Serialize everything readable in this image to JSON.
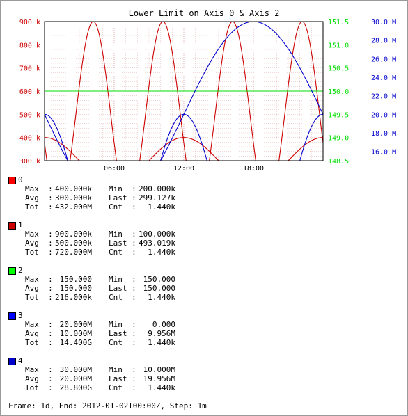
{
  "chart_data": {
    "type": "line",
    "title": "Lower Limit on Axis 0 & Axis 2",
    "x_ticks": [
      "06:00",
      "12:00",
      "18:00"
    ],
    "x_range_hours": [
      0,
      24
    ],
    "axes": [
      {
        "id": "axis0",
        "side": "left",
        "color": "#cc0000",
        "range": [
          300000,
          900000
        ],
        "ticks": [
          {
            "value": 900000,
            "label": "900 k"
          },
          {
            "value": 800000,
            "label": "800 k"
          },
          {
            "value": 700000,
            "label": "700 k"
          },
          {
            "value": 600000,
            "label": "600 k"
          },
          {
            "value": 500000,
            "label": "500 k"
          },
          {
            "value": 400000,
            "label": "400 k"
          },
          {
            "value": 300000,
            "label": "300 k"
          }
        ]
      },
      {
        "id": "axis2",
        "side": "right",
        "color": "#00dd00",
        "range": [
          148.5,
          151.5
        ],
        "ticks": [
          {
            "value": 151.5,
            "label": "151.5"
          },
          {
            "value": 151.0,
            "label": "151.0"
          },
          {
            "value": 150.5,
            "label": "150.5"
          },
          {
            "value": 150.0,
            "label": "150.0"
          },
          {
            "value": 149.5,
            "label": "149.5"
          },
          {
            "value": 149.0,
            "label": "149.0"
          },
          {
            "value": 148.5,
            "label": "148.5"
          }
        ]
      },
      {
        "id": "axis3",
        "side": "right",
        "color": "#0000cc",
        "range": [
          15000000,
          30000000
        ],
        "ticks": [
          {
            "value": 30000000,
            "label": "30.0 M"
          },
          {
            "value": 28000000,
            "label": "28.0 M"
          },
          {
            "value": 26000000,
            "label": "26.0 M"
          },
          {
            "value": 24000000,
            "label": "24.0 M"
          },
          {
            "value": 22000000,
            "label": "22.0 M"
          },
          {
            "value": 20000000,
            "label": "20.0 M"
          },
          {
            "value": 18000000,
            "label": "18.0 M"
          },
          {
            "value": 16000000,
            "label": "16.0 M"
          }
        ]
      }
    ],
    "series": [
      {
        "name": "0",
        "color": "#cc0000",
        "axis": "axis0",
        "min": 200000,
        "max": 400000,
        "phase": 0.5,
        "period_hours": 12
      },
      {
        "name": "1",
        "color": "#cc0000",
        "axis": "axis0",
        "min": 100000,
        "max": 900000,
        "phase": 0.8,
        "period_hours": 6
      },
      {
        "name": "2",
        "color": "#00dd00",
        "axis": "axis2",
        "min": 150,
        "max": 150,
        "phase": 0,
        "period_hours": 24
      },
      {
        "name": "3",
        "color": "#0000cc",
        "axis": "axis3",
        "min": 0,
        "max": 20000000,
        "phase": 0.5,
        "period_hours": 12
      },
      {
        "name": "4",
        "color": "#0000cc",
        "axis": "axis3",
        "min": 10000000,
        "max": 30000000,
        "phase": 0.75,
        "period_hours": 24
      }
    ]
  },
  "legend": [
    {
      "name": "0",
      "color": "#ff0000",
      "max": "400.000k",
      "min": "200.000k",
      "avg": "300.000k",
      "last": "299.127k",
      "tot": "432.000M",
      "cnt": "1.440k"
    },
    {
      "name": "1",
      "color": "#cc0000",
      "max": "900.000k",
      "min": "100.000k",
      "avg": "500.000k",
      "last": "493.019k",
      "tot": "720.000M",
      "cnt": "1.440k"
    },
    {
      "name": "2",
      "color": "#00ff00",
      "max": "150.000",
      "min": "150.000",
      "avg": "150.000",
      "last": "150.000",
      "tot": "216.000k",
      "cnt": "1.440k"
    },
    {
      "name": "3",
      "color": "#0000ff",
      "max": "20.000M",
      "min": "0.000",
      "avg": "10.000M",
      "last": "9.956M",
      "tot": "14.400G",
      "cnt": "1.440k"
    },
    {
      "name": "4",
      "color": "#0000cc",
      "max": "30.000M",
      "min": "10.000M",
      "avg": "20.000M",
      "last": "19.956M",
      "tot": "28.800G",
      "cnt": "1.440k"
    }
  ],
  "stat_labels": {
    "max": "Max :",
    "min": "Min :",
    "avg": "Avg :",
    "last": "Last :",
    "tot": "Tot :",
    "cnt": "Cnt :"
  },
  "footer": "Frame: 1d, End: 2012-01-02T00:00Z, Step: 1m"
}
